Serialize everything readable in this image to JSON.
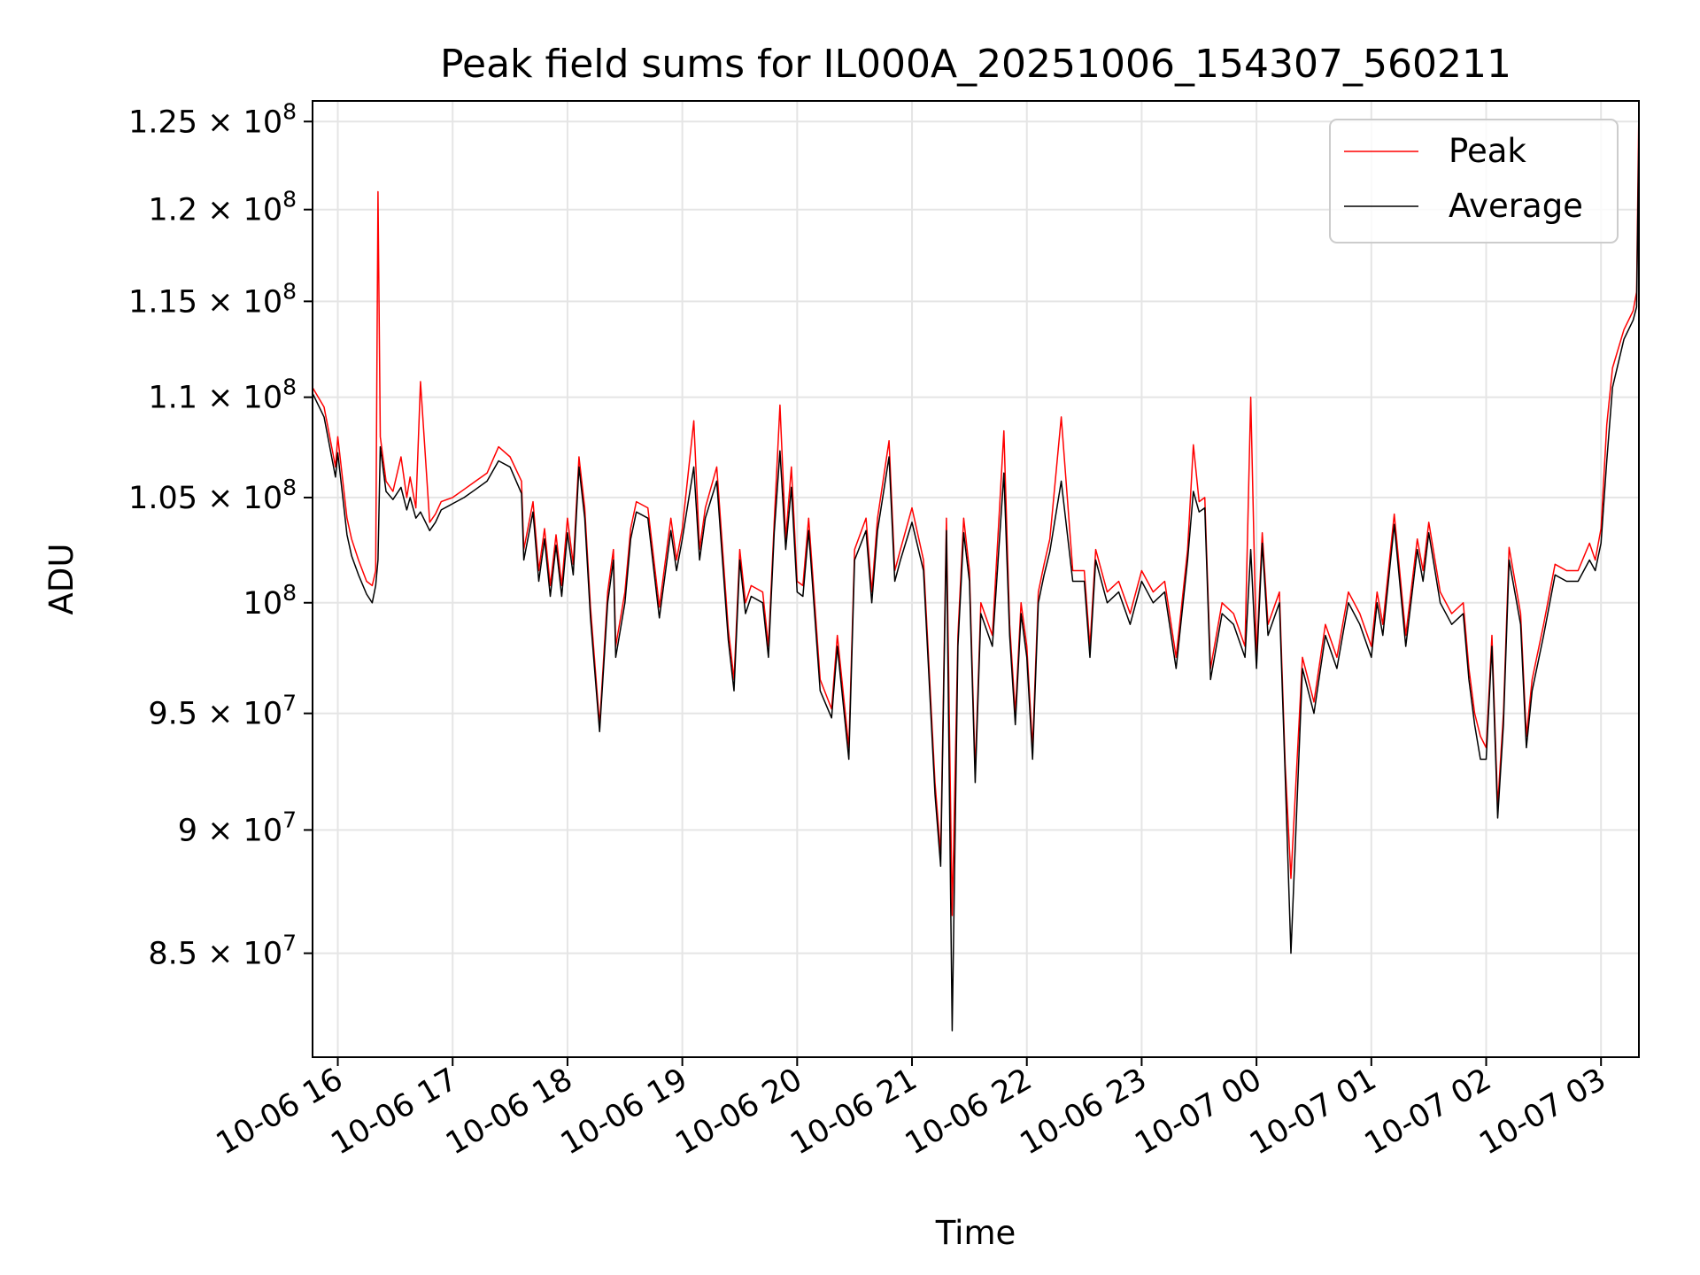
{
  "chart_data": {
    "type": "line",
    "title": "Peak field sums for IL000A_20251006_154307_560211",
    "xlabel": "Time",
    "ylabel": "ADU",
    "xlim_hours": [
      15.78,
      27.33
    ],
    "ylim": [
      81000000,
      126200000
    ],
    "y_scale": "log",
    "grid": true,
    "legend_position": "upper-right",
    "x_ticks": [
      {
        "hour": 16,
        "label": "10-06 16"
      },
      {
        "hour": 17,
        "label": "10-06 17"
      },
      {
        "hour": 18,
        "label": "10-06 18"
      },
      {
        "hour": 19,
        "label": "10-06 19"
      },
      {
        "hour": 20,
        "label": "10-06 20"
      },
      {
        "hour": 21,
        "label": "10-06 21"
      },
      {
        "hour": 22,
        "label": "10-06 22"
      },
      {
        "hour": 23,
        "label": "10-06 23"
      },
      {
        "hour": 24,
        "label": "10-07 00"
      },
      {
        "hour": 25,
        "label": "10-07 01"
      },
      {
        "hour": 26,
        "label": "10-07 02"
      },
      {
        "hour": 27,
        "label": "10-07 03"
      }
    ],
    "y_ticks": [
      {
        "value": 85000000,
        "mantissa": "8.5",
        "exp": "7"
      },
      {
        "value": 90000000,
        "mantissa": "9",
        "exp": "7"
      },
      {
        "value": 95000000,
        "mantissa": "9.5",
        "exp": "7"
      },
      {
        "value": 100000000,
        "mantissa": "",
        "exp": "8"
      },
      {
        "value": 105000000,
        "mantissa": "1.05",
        "exp": "8"
      },
      {
        "value": 110000000,
        "mantissa": "1.1",
        "exp": "8"
      },
      {
        "value": 115000000,
        "mantissa": "1.15",
        "exp": "8"
      },
      {
        "value": 120000000,
        "mantissa": "1.2",
        "exp": "8"
      },
      {
        "value": 125000000,
        "mantissa": "1.25",
        "exp": "8"
      }
    ],
    "series": [
      {
        "name": "Peak",
        "color": "#ff0000",
        "x_hours": [
          15.78,
          15.88,
          15.98,
          16.0,
          16.08,
          16.12,
          16.18,
          16.25,
          16.3,
          16.33,
          16.35,
          16.37,
          16.42,
          16.48,
          16.55,
          16.6,
          16.63,
          16.68,
          16.72,
          16.8,
          16.85,
          16.9,
          17.0,
          17.1,
          17.2,
          17.3,
          17.4,
          17.5,
          17.6,
          17.62,
          17.7,
          17.75,
          17.8,
          17.85,
          17.9,
          17.95,
          18.0,
          18.05,
          18.1,
          18.15,
          18.2,
          18.28,
          18.35,
          18.4,
          18.42,
          18.5,
          18.55,
          18.6,
          18.7,
          18.8,
          18.9,
          18.95,
          19.0,
          19.1,
          19.15,
          19.2,
          19.3,
          19.4,
          19.45,
          19.5,
          19.55,
          19.6,
          19.7,
          19.75,
          19.8,
          19.85,
          19.9,
          19.95,
          20.0,
          20.05,
          20.1,
          20.2,
          20.3,
          20.35,
          20.45,
          20.5,
          20.6,
          20.65,
          20.7,
          20.8,
          20.85,
          20.9,
          21.0,
          21.1,
          21.2,
          21.25,
          21.3,
          21.35,
          21.4,
          21.45,
          21.5,
          21.55,
          21.6,
          21.7,
          21.8,
          21.85,
          21.9,
          21.95,
          22.0,
          22.05,
          22.1,
          22.15,
          22.2,
          22.3,
          22.4,
          22.5,
          22.55,
          22.6,
          22.7,
          22.8,
          22.9,
          23.0,
          23.1,
          23.2,
          23.3,
          23.4,
          23.45,
          23.5,
          23.55,
          23.6,
          23.7,
          23.8,
          23.9,
          23.95,
          24.0,
          24.05,
          24.1,
          24.2,
          24.25,
          24.3,
          24.4,
          24.5,
          24.6,
          24.7,
          24.8,
          24.9,
          25.0,
          25.05,
          25.1,
          25.2,
          25.3,
          25.4,
          25.45,
          25.5,
          25.6,
          25.7,
          25.8,
          25.85,
          25.9,
          25.95,
          26.0,
          26.05,
          26.1,
          26.15,
          26.2,
          26.3,
          26.35,
          26.4,
          26.5,
          26.6,
          26.7,
          26.8,
          26.9,
          26.95,
          27.0,
          27.05,
          27.1,
          27.2,
          27.28,
          27.31,
          27.33
        ],
        "values": [
          110500000,
          109500000,
          106500000,
          108000000,
          104000000,
          103000000,
          102000000,
          101000000,
          100800000,
          101500000,
          121000000,
          108000000,
          105800000,
          105300000,
          107000000,
          105000000,
          106000000,
          104500000,
          110800000,
          103800000,
          104200000,
          104800000,
          105000000,
          105400000,
          105800000,
          106200000,
          107500000,
          107000000,
          105800000,
          102500000,
          104800000,
          101500000,
          103500000,
          100800000,
          103200000,
          100800000,
          104000000,
          101800000,
          107000000,
          104500000,
          99800000,
          94500000,
          100500000,
          102500000,
          98000000,
          100500000,
          103500000,
          104800000,
          104500000,
          99800000,
          104000000,
          102000000,
          103500000,
          108800000,
          102500000,
          104500000,
          106500000,
          98800000,
          96500000,
          102500000,
          100000000,
          100800000,
          100500000,
          98000000,
          103800000,
          109600000,
          103000000,
          106500000,
          101000000,
          100800000,
          104000000,
          96500000,
          95200000,
          98500000,
          93500000,
          102500000,
          104000000,
          100500000,
          104000000,
          107800000,
          101500000,
          102500000,
          104500000,
          102000000,
          92000000,
          89000000,
          104000000,
          86500000,
          98500000,
          104000000,
          101500000,
          92500000,
          100000000,
          98500000,
          108300000,
          99000000,
          95000000,
          100000000,
          98000000,
          93500000,
          100500000,
          101800000,
          103000000,
          109000000,
          101500000,
          101500000,
          98000000,
          102500000,
          100500000,
          101000000,
          99500000,
          101500000,
          100500000,
          101000000,
          97500000,
          102500000,
          107600000,
          104800000,
          105000000,
          97000000,
          100000000,
          99500000,
          98000000,
          110000000,
          97500000,
          103300000,
          99000000,
          100500000,
          92800000,
          88000000,
          97500000,
          95500000,
          99000000,
          97500000,
          100500000,
          99500000,
          98000000,
          100500000,
          99000000,
          104200000,
          98500000,
          103000000,
          101500000,
          103800000,
          100500000,
          99500000,
          100000000,
          97000000,
          95000000,
          94000000,
          93500000,
          98500000,
          91000000,
          95000000,
          102600000,
          99500000,
          94000000,
          96500000,
          99000000,
          101800000,
          101500000,
          101500000,
          102800000,
          102000000,
          103500000,
          108600000,
          111500000,
          113500000,
          114500000,
          115500000,
          126000000
        ]
      },
      {
        "name": "Average",
        "color": "#000000",
        "x_hours": [
          15.78,
          15.88,
          15.98,
          16.0,
          16.08,
          16.12,
          16.18,
          16.25,
          16.3,
          16.33,
          16.35,
          16.37,
          16.42,
          16.48,
          16.55,
          16.6,
          16.63,
          16.68,
          16.72,
          16.8,
          16.85,
          16.9,
          17.0,
          17.1,
          17.2,
          17.3,
          17.4,
          17.5,
          17.6,
          17.62,
          17.7,
          17.75,
          17.8,
          17.85,
          17.9,
          17.95,
          18.0,
          18.05,
          18.1,
          18.15,
          18.2,
          18.28,
          18.35,
          18.4,
          18.42,
          18.5,
          18.55,
          18.6,
          18.7,
          18.8,
          18.9,
          18.95,
          19.0,
          19.1,
          19.15,
          19.2,
          19.3,
          19.4,
          19.45,
          19.5,
          19.55,
          19.6,
          19.7,
          19.75,
          19.8,
          19.85,
          19.9,
          19.95,
          20.0,
          20.05,
          20.1,
          20.2,
          20.3,
          20.35,
          20.45,
          20.5,
          20.6,
          20.65,
          20.7,
          20.8,
          20.85,
          20.9,
          21.0,
          21.1,
          21.2,
          21.25,
          21.3,
          21.35,
          21.4,
          21.45,
          21.5,
          21.55,
          21.6,
          21.7,
          21.8,
          21.85,
          21.9,
          21.95,
          22.0,
          22.05,
          22.1,
          22.15,
          22.2,
          22.3,
          22.4,
          22.5,
          22.55,
          22.6,
          22.7,
          22.8,
          22.9,
          23.0,
          23.1,
          23.2,
          23.3,
          23.4,
          23.45,
          23.5,
          23.55,
          23.6,
          23.7,
          23.8,
          23.9,
          23.95,
          24.0,
          24.05,
          24.1,
          24.2,
          24.25,
          24.3,
          24.4,
          24.5,
          24.6,
          24.7,
          24.8,
          24.9,
          25.0,
          25.05,
          25.1,
          25.2,
          25.3,
          25.4,
          25.45,
          25.5,
          25.6,
          25.7,
          25.8,
          25.85,
          25.9,
          25.95,
          26.0,
          26.05,
          26.1,
          26.15,
          26.2,
          26.3,
          26.35,
          26.4,
          26.5,
          26.6,
          26.7,
          26.8,
          26.9,
          26.95,
          27.0,
          27.05,
          27.1,
          27.2,
          27.28,
          27.31,
          27.33
        ],
        "values": [
          110200000,
          109000000,
          106000000,
          107200000,
          103200000,
          102200000,
          101300000,
          100400000,
          100000000,
          100800000,
          102000000,
          107500000,
          105300000,
          104900000,
          105500000,
          104400000,
          105000000,
          104000000,
          104300000,
          103400000,
          103800000,
          104400000,
          104700000,
          105000000,
          105400000,
          105800000,
          106800000,
          106500000,
          105200000,
          102000000,
          104300000,
          101000000,
          103000000,
          100300000,
          102700000,
          100300000,
          103300000,
          101300000,
          106500000,
          104000000,
          99300000,
          94200000,
          100000000,
          102000000,
          97500000,
          100000000,
          103000000,
          104300000,
          104000000,
          99300000,
          103400000,
          101500000,
          103000000,
          106500000,
          102000000,
          104000000,
          105800000,
          98300000,
          96000000,
          102000000,
          99500000,
          100300000,
          100000000,
          97500000,
          103300000,
          107300000,
          102500000,
          105500000,
          100500000,
          100300000,
          103400000,
          96000000,
          94800000,
          98000000,
          93000000,
          102000000,
          103400000,
          100000000,
          103400000,
          107000000,
          101000000,
          102000000,
          103800000,
          101500000,
          91500000,
          88500000,
          103400000,
          82000000,
          98000000,
          103300000,
          101000000,
          92000000,
          99500000,
          98000000,
          106200000,
          98500000,
          94500000,
          99500000,
          97500000,
          93000000,
          100000000,
          101300000,
          102400000,
          105800000,
          101000000,
          101000000,
          97500000,
          102000000,
          100000000,
          100500000,
          99000000,
          101000000,
          100000000,
          100500000,
          97000000,
          102000000,
          105300000,
          104300000,
          104500000,
          96500000,
          99500000,
          99000000,
          97500000,
          102500000,
          97000000,
          102800000,
          98500000,
          100000000,
          92300000,
          85000000,
          97000000,
          95000000,
          98500000,
          97000000,
          100000000,
          99000000,
          97500000,
          100000000,
          98500000,
          103700000,
          98000000,
          102500000,
          101000000,
          103300000,
          100000000,
          99000000,
          99500000,
          96500000,
          94500000,
          93000000,
          93000000,
          98000000,
          90500000,
          94500000,
          102000000,
          99000000,
          93500000,
          96000000,
          98500000,
          101300000,
          101000000,
          101000000,
          102000000,
          101500000,
          102800000,
          106800000,
          110500000,
          113000000,
          114000000,
          114700000,
          124500000
        ]
      }
    ]
  }
}
